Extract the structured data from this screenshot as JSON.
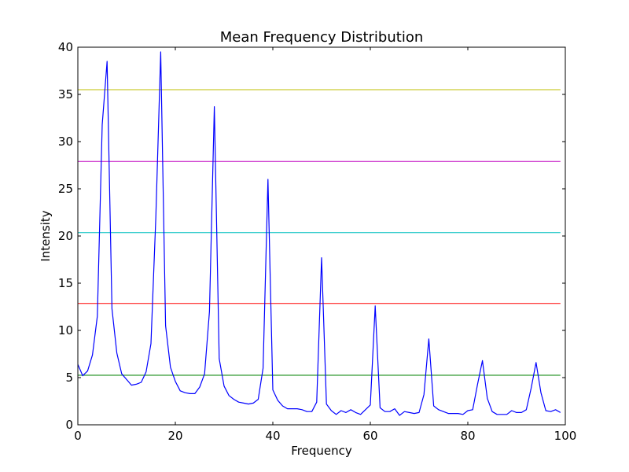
{
  "chart_data": {
    "type": "line",
    "title": "Mean Frequency Distribution",
    "xlabel": "Frequency",
    "ylabel": "Intensity",
    "xlim": [
      0,
      100
    ],
    "ylim": [
      0,
      40
    ],
    "xticks": [
      "0",
      "20",
      "40",
      "60",
      "80",
      "100"
    ],
    "yticks": [
      "0",
      "5",
      "10",
      "15",
      "20",
      "25",
      "30",
      "35",
      "40"
    ],
    "grid": false,
    "series": [
      {
        "color": "#0000ff",
        "x": [
          0,
          1,
          2,
          3,
          4,
          5,
          6,
          7,
          8,
          9,
          10,
          11,
          12,
          13,
          14,
          15,
          16,
          17,
          18,
          19,
          20,
          21,
          22,
          23,
          24,
          25,
          26,
          27,
          28,
          29,
          30,
          31,
          32,
          33,
          34,
          35,
          36,
          37,
          38,
          39,
          40,
          41,
          42,
          43,
          44,
          45,
          46,
          47,
          48,
          49,
          50,
          51,
          52,
          53,
          54,
          55,
          56,
          57,
          58,
          59,
          60,
          61,
          62,
          63,
          64,
          65,
          66,
          67,
          68,
          69,
          70,
          71,
          72,
          73,
          74,
          75,
          76,
          77,
          78,
          79,
          80,
          81,
          82,
          83,
          84,
          85,
          86,
          87,
          88,
          89,
          90,
          91,
          92,
          93,
          94,
          95,
          96,
          97,
          98,
          99
        ],
        "y": [
          6.4,
          5.2,
          5.7,
          7.4,
          11.5,
          31.8,
          38.5,
          12.3,
          7.6,
          5.4,
          4.8,
          4.2,
          4.3,
          4.5,
          5.6,
          8.6,
          22.0,
          39.5,
          10.5,
          6.1,
          4.6,
          3.6,
          3.4,
          3.3,
          3.3,
          4.0,
          5.4,
          12.0,
          33.7,
          7.0,
          4.1,
          3.1,
          2.7,
          2.4,
          2.3,
          2.2,
          2.3,
          2.7,
          6.0,
          26.0,
          3.7,
          2.6,
          2.0,
          1.7,
          1.7,
          1.7,
          1.6,
          1.4,
          1.4,
          2.4,
          17.7,
          2.2,
          1.5,
          1.1,
          1.5,
          1.3,
          1.6,
          1.3,
          1.1,
          1.6,
          2.1,
          12.6,
          1.8,
          1.4,
          1.4,
          1.7,
          1.0,
          1.4,
          1.3,
          1.2,
          1.3,
          3.2,
          9.1,
          2.0,
          1.6,
          1.4,
          1.2,
          1.2,
          1.2,
          1.1,
          1.5,
          1.6,
          4.3,
          6.8,
          2.8,
          1.4,
          1.1,
          1.1,
          1.1,
          1.5,
          1.3,
          1.3,
          1.6,
          3.9,
          6.6,
          3.4,
          1.5,
          1.4,
          1.6,
          1.3
        ]
      }
    ],
    "hlines": [
      {
        "y": 35.5,
        "color": "#bfbf00"
      },
      {
        "y": 27.9,
        "color": "#bf00bf"
      },
      {
        "y": 20.35,
        "color": "#00bfbf"
      },
      {
        "y": 12.85,
        "color": "#ff0000"
      },
      {
        "y": 5.25,
        "color": "#008000"
      }
    ]
  }
}
